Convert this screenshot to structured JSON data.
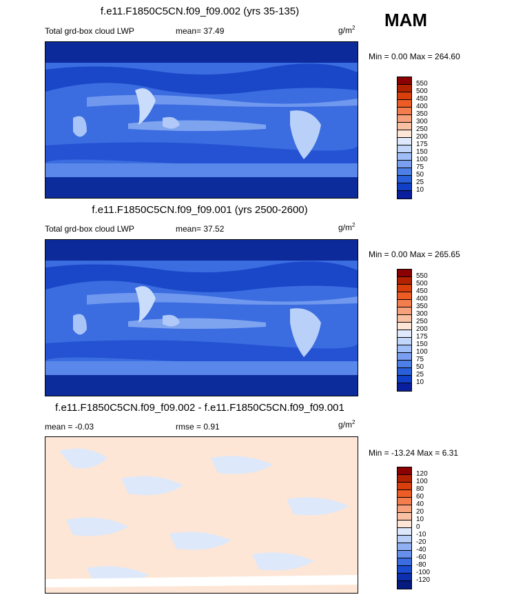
{
  "season": "MAM",
  "panels": [
    {
      "title": "f.e11.F1850C5CN.f09_f09.002 (yrs 35-135)",
      "left_label": "Total grd-box cloud LWP",
      "mid_label": "mean=  37.49",
      "unit_base": "g/m",
      "unit_exp": "2",
      "minmax": "Min =   0.00 Max = 264.60",
      "colorbar": {
        "labels": [
          "550",
          "500",
          "450",
          "400",
          "350",
          "300",
          "250",
          "200",
          "175",
          "150",
          "100",
          "75",
          "50",
          "25",
          "10"
        ],
        "colors": [
          "#8b0000",
          "#b22200",
          "#d93f0c",
          "#ee5c26",
          "#f47d4e",
          "#f7a07c",
          "#f9c0a4",
          "#fde6d6",
          "#dfe9fb",
          "#c2d6fa",
          "#9fbdf6",
          "#7a9ff0",
          "#4e7fe6",
          "#2a5fda",
          "#1040c8",
          "#0a1f9e"
        ]
      }
    },
    {
      "title": "f.e11.F1850C5CN.f09_f09.001 (yrs 2500-2600)",
      "left_label": "Total grd-box cloud LWP",
      "mid_label": "mean=  37.52",
      "unit_base": "g/m",
      "unit_exp": "2",
      "minmax": "Min =   0.00 Max = 265.65",
      "colorbar": {
        "labels": [
          "550",
          "500",
          "450",
          "400",
          "350",
          "300",
          "250",
          "200",
          "175",
          "150",
          "100",
          "75",
          "50",
          "25",
          "10"
        ],
        "colors": [
          "#8b0000",
          "#b22200",
          "#d93f0c",
          "#ee5c26",
          "#f47d4e",
          "#f7a07c",
          "#f9c0a4",
          "#fde6d6",
          "#dfe9fb",
          "#c2d6fa",
          "#9fbdf6",
          "#7a9ff0",
          "#4e7fe6",
          "#2a5fda",
          "#1040c8",
          "#0a1f9e"
        ]
      }
    },
    {
      "title": "f.e11.F1850C5CN.f09_f09.002 - f.e11.F1850C5CN.f09_f09.001",
      "left_label": "mean =  -0.03",
      "mid_label": "rmse =   0.91",
      "unit_base": "g/m",
      "unit_exp": "2",
      "minmax": "Min = -13.24 Max =   6.31",
      "colorbar": {
        "labels": [
          "120",
          "100",
          "80",
          "60",
          "40",
          "20",
          "10",
          "0",
          "-10",
          "-20",
          "-40",
          "-60",
          "-80",
          "-100",
          "-120"
        ],
        "colors": [
          "#8b0000",
          "#b22200",
          "#d93f0c",
          "#ee5c26",
          "#f47d4e",
          "#f7a07c",
          "#f9c0a4",
          "#fde6d6",
          "#dde8fa",
          "#b8cff8",
          "#8fb1f3",
          "#6690eb",
          "#3a6de0",
          "#1a4bd0",
          "#0c2fb0",
          "#061a80"
        ]
      }
    }
  ]
}
